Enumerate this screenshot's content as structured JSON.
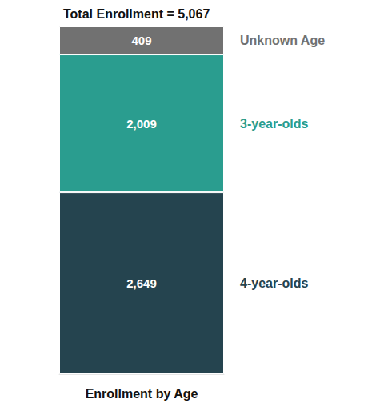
{
  "chart_data": {
    "type": "bar",
    "title": "Total Enrollment = 5,067",
    "categories": [
      "Enrollment by Age"
    ],
    "series": [
      {
        "name": "4-year-olds",
        "color": "#25444f",
        "values": [
          2649
        ],
        "value_labels": [
          "2,649"
        ]
      },
      {
        "name": "3-year-olds",
        "color": "#2a9d8f",
        "values": [
          2009
        ],
        "value_labels": [
          "2,009"
        ]
      },
      {
        "name": "Unknown Age",
        "color": "#717171",
        "values": [
          409
        ],
        "value_labels": [
          "409"
        ]
      }
    ],
    "ylim": [
      0,
      5067
    ],
    "stacked": true,
    "data_labels": true,
    "grid": false,
    "tick_labels": "x"
  }
}
